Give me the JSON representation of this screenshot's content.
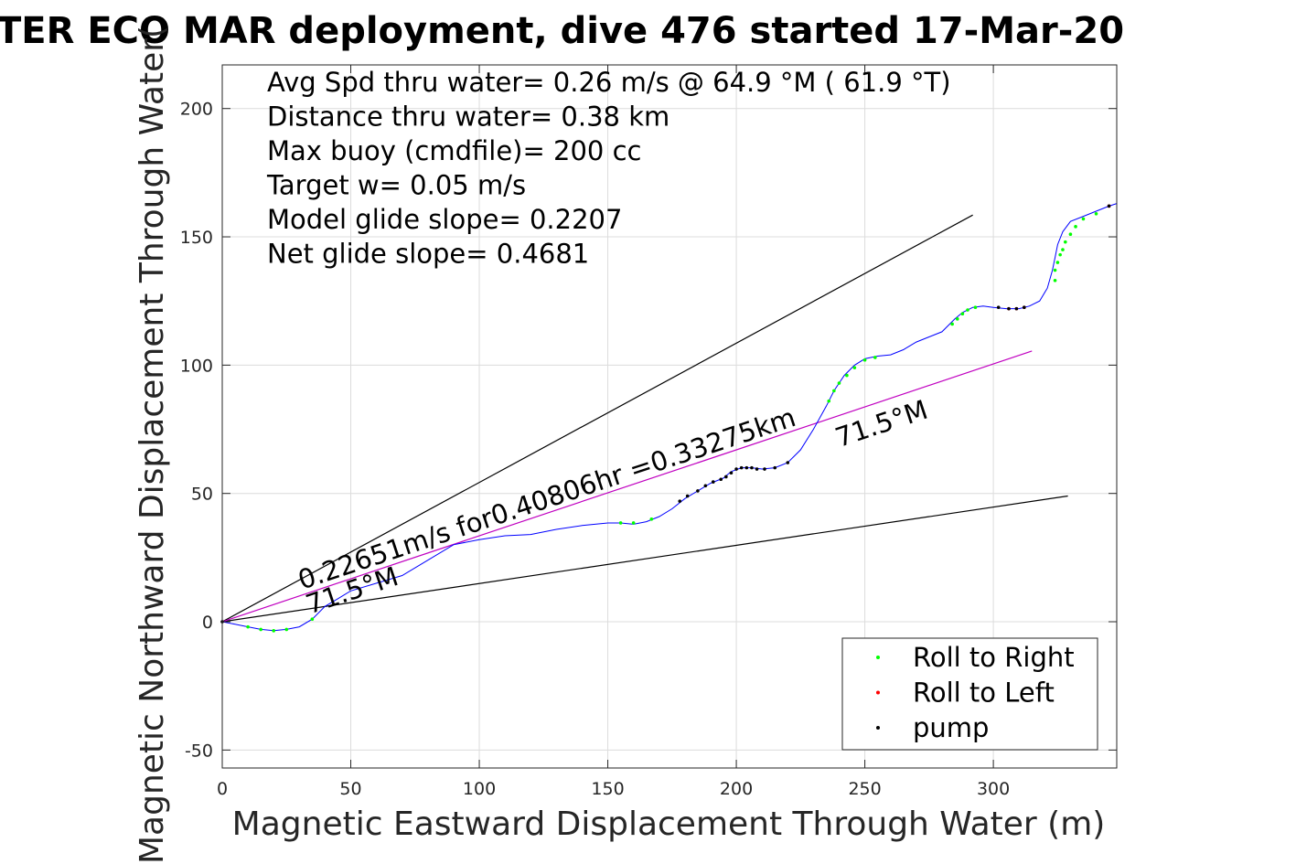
{
  "title": "TER ECO MAR deployment, dive 476 started 17-Mar-20",
  "chart_data": {
    "type": "line",
    "xlabel": "Magnetic Eastward Displacement Through Water (m)",
    "ylabel": "Magnetic Northward Displacement Through Water(",
    "xlim": [
      0,
      348
    ],
    "ylim": [
      -57,
      217
    ],
    "xticks": [
      0,
      50,
      100,
      150,
      200,
      250,
      300
    ],
    "yticks": [
      -50,
      0,
      50,
      100,
      150,
      200
    ],
    "xtick_labels": [
      "0",
      "50",
      "100",
      "150",
      "200",
      "250",
      "300"
    ],
    "ytick_labels": [
      "-50",
      "0",
      "50",
      "100",
      "150",
      "200"
    ],
    "grid": true,
    "info_lines": [
      "Avg Spd thru water=  0.26 m/s @  64.9 °M ( 61.9 °T)",
      "Distance thru water=  0.38 km",
      "Max buoy (cmdfile)= 200 cc",
      "Target w= 0.05 m/s",
      "Model glide slope= 0.2207",
      "Net glide slope= 0.4681"
    ],
    "reference_lines": [
      {
        "x": [
          0,
          292
        ],
        "y": [
          0,
          158.5
        ],
        "color": "#000000"
      },
      {
        "x": [
          0,
          329
        ],
        "y": [
          0,
          49
        ],
        "color": "#000000"
      },
      {
        "x": [
          0,
          315
        ],
        "y": [
          0,
          105.5
        ],
        "color": "#c000c0"
      }
    ],
    "annotations": [
      {
        "text": "0.22651m/s for0.40806hr =0.33275km",
        "x": 31,
        "y": 12.5,
        "angle": -18.4
      },
      {
        "text": "71.5°M",
        "x": 34,
        "y": 3,
        "angle": -18.4
      },
      {
        "text": "71.5°M",
        "x": 240,
        "y": 68,
        "angle": -18.4
      }
    ],
    "series": [
      {
        "name": "track",
        "color": "#0000ff",
        "x": [
          0,
          5,
          10,
          15,
          20,
          25,
          30,
          35,
          40,
          45,
          50,
          60,
          70,
          80,
          90,
          100,
          110,
          120,
          130,
          140,
          150,
          155,
          160,
          165,
          170,
          175,
          180,
          185,
          190,
          195,
          198,
          202,
          206,
          210,
          215,
          220,
          225,
          230,
          235,
          238,
          242,
          246,
          250,
          255,
          260,
          265,
          270,
          275,
          280,
          283,
          285,
          288,
          292,
          296,
          300,
          305,
          310,
          314,
          318,
          321,
          323,
          324,
          325,
          327,
          330,
          335,
          340,
          345,
          348
        ],
        "y": [
          0,
          -1,
          -2,
          -3,
          -3.5,
          -3,
          -2,
          1,
          6,
          9,
          12,
          15,
          18,
          24,
          30,
          32,
          33.5,
          34,
          36,
          37.5,
          38.5,
          38.5,
          38,
          39,
          41,
          44,
          48,
          51,
          54,
          56,
          58.5,
          60,
          60,
          59.5,
          60,
          62,
          67,
          75,
          84,
          90,
          96,
          100,
          102.5,
          103.5,
          104,
          106,
          109,
          111,
          113,
          116,
          118,
          120.5,
          122.5,
          123,
          122.5,
          122,
          122,
          123,
          125,
          130,
          137,
          142,
          147,
          152,
          156,
          158,
          160,
          162,
          163
        ]
      }
    ],
    "markers": [
      {
        "name": "Roll to Right",
        "color": "#00ff00",
        "x": [
          10,
          15,
          20,
          25,
          35,
          155,
          160,
          167,
          236,
          238,
          240,
          243,
          246,
          250,
          254,
          284,
          286,
          288,
          290,
          293,
          324,
          324,
          325,
          326,
          327,
          328,
          330,
          332,
          335,
          340
        ],
        "y": [
          -2,
          -3,
          -3.5,
          -3,
          1,
          38.5,
          38.5,
          40,
          86,
          90,
          93,
          96,
          99,
          102,
          103,
          116,
          118,
          120,
          121.5,
          122.5,
          133,
          137,
          140,
          143,
          145,
          148,
          151,
          154,
          157,
          159
        ]
      },
      {
        "name": "Roll to Left",
        "color": "#ff0000",
        "x": [
          306,
          309,
          312,
          345
        ],
        "y": [
          122,
          122,
          122.5,
          162
        ]
      },
      {
        "name": "pump",
        "color": "#000000",
        "x": [
          0,
          178,
          181,
          185,
          188,
          191,
          194,
          196,
          198,
          200,
          202,
          204,
          206,
          208,
          211,
          215,
          220,
          302,
          306,
          309,
          312,
          345
        ],
        "y": [
          0,
          47,
          49,
          51,
          53,
          54.5,
          55.5,
          56.5,
          58,
          59.5,
          60,
          60,
          60,
          59.5,
          59.5,
          60,
          62,
          122.5,
          122,
          122,
          122.5,
          162
        ]
      }
    ],
    "legend": {
      "placement": "bottom-right",
      "entries": [
        {
          "label": "Roll to Right",
          "color": "#00ff00"
        },
        {
          "label": "Roll to Left",
          "color": "#ff0000"
        },
        {
          "label": "pump",
          "color": "#000000"
        }
      ]
    }
  }
}
